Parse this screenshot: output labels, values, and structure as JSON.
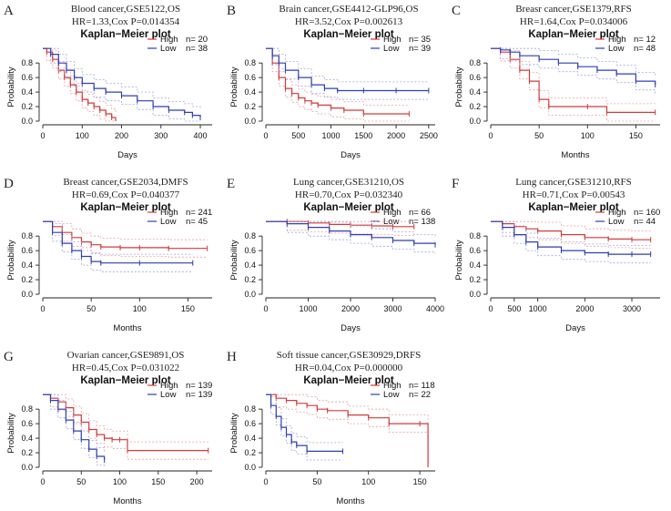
{
  "colors": {
    "high": "#d43a3a",
    "low": "#2f3fb3",
    "ci_high": "#e9a0a0",
    "ci_low": "#a0a6e0",
    "axis": "#222222"
  },
  "chart_data": [
    {
      "letter": "A",
      "title_line1": "Blood cancer,GSE5122,OS",
      "title_line2": "HR=1.33,Cox P=0.014354",
      "plot_title": "Kaplan−Meier plot",
      "type": "line",
      "xlabel": "Days",
      "ylabel": "Probability",
      "xlim": [
        0,
        430
      ],
      "ylim": [
        0,
        1
      ],
      "xticks": [
        0,
        100,
        200,
        300,
        400
      ],
      "yticks": [
        0.0,
        0.2,
        0.4,
        0.6,
        0.8
      ],
      "legend": [
        {
          "label": "High",
          "n": "n= 20"
        },
        {
          "label": "Low",
          "n": "n= 38"
        }
      ],
      "series": [
        {
          "name": "High",
          "x": [
            0,
            10,
            25,
            40,
            55,
            70,
            85,
            100,
            115,
            130,
            145,
            160,
            175,
            185
          ],
          "y": [
            1.0,
            0.95,
            0.85,
            0.7,
            0.6,
            0.5,
            0.4,
            0.3,
            0.25,
            0.2,
            0.15,
            0.1,
            0.05,
            0.0
          ]
        },
        {
          "name": "Low",
          "x": [
            0,
            20,
            40,
            60,
            80,
            100,
            130,
            160,
            200,
            240,
            280,
            320,
            360,
            380,
            400
          ],
          "y": [
            1.0,
            0.92,
            0.8,
            0.7,
            0.6,
            0.52,
            0.45,
            0.4,
            0.35,
            0.28,
            0.2,
            0.15,
            0.12,
            0.08,
            0.05
          ]
        }
      ]
    },
    {
      "letter": "B",
      "title_line1": "Brain cancer,GSE4412-GLP96,OS",
      "title_line2": "HR=3.52,Cox P=0.002613",
      "plot_title": "Kaplan−Meier plot",
      "type": "line",
      "xlabel": "Days",
      "ylabel": "Probability",
      "xlim": [
        0,
        2600
      ],
      "ylim": [
        0,
        1
      ],
      "xticks": [
        0,
        500,
        1000,
        1500,
        2000,
        2500
      ],
      "yticks": [
        0.0,
        0.2,
        0.4,
        0.6,
        0.8
      ],
      "legend": [
        {
          "label": "High",
          "n": "n= 35"
        },
        {
          "label": "Low",
          "n": "n= 39"
        }
      ],
      "series": [
        {
          "name": "High",
          "x": [
            0,
            100,
            200,
            300,
            400,
            500,
            600,
            700,
            800,
            1000,
            1200,
            1500,
            2200
          ],
          "y": [
            1.0,
            0.8,
            0.6,
            0.45,
            0.38,
            0.32,
            0.28,
            0.25,
            0.22,
            0.18,
            0.15,
            0.1,
            0.1
          ]
        },
        {
          "name": "Low",
          "x": [
            0,
            100,
            200,
            300,
            500,
            700,
            900,
            1100,
            1500,
            2000,
            2500
          ],
          "y": [
            1.0,
            0.9,
            0.8,
            0.7,
            0.6,
            0.5,
            0.45,
            0.42,
            0.42,
            0.42,
            0.42
          ]
        }
      ]
    },
    {
      "letter": "C",
      "title_line1": "Breasr cancer,GSE1379,RFS",
      "title_line2": "HR=1.64,Cox P=0.034006",
      "plot_title": "Kaplan−Meier plot",
      "type": "line",
      "xlabel": "Months",
      "ylabel": "Probability",
      "xlim": [
        0,
        175
      ],
      "ylim": [
        0,
        1
      ],
      "xticks": [
        0,
        50,
        100,
        150
      ],
      "yticks": [
        0.0,
        0.2,
        0.4,
        0.6,
        0.8
      ],
      "legend": [
        {
          "label": "High",
          "n": "n= 12"
        },
        {
          "label": "Low",
          "n": "n= 48"
        }
      ],
      "series": [
        {
          "name": "High",
          "x": [
            0,
            10,
            20,
            30,
            40,
            50,
            60,
            100,
            120,
            170
          ],
          "y": [
            1.0,
            0.95,
            0.85,
            0.7,
            0.55,
            0.3,
            0.2,
            0.2,
            0.12,
            0.12
          ]
        },
        {
          "name": "Low",
          "x": [
            0,
            10,
            20,
            30,
            50,
            70,
            90,
            110,
            130,
            150,
            170
          ],
          "y": [
            1.0,
            0.98,
            0.95,
            0.9,
            0.85,
            0.8,
            0.75,
            0.7,
            0.65,
            0.55,
            0.5
          ]
        }
      ]
    },
    {
      "letter": "D",
      "title_line1": "Breast cancer,GSE2034,DMFS",
      "title_line2": "HR=0.69,Cox P=0.040377",
      "plot_title": "Kaplan−Meier plot",
      "type": "line",
      "xlabel": "Months",
      "ylabel": "Probability",
      "xlim": [
        0,
        175
      ],
      "ylim": [
        0,
        1
      ],
      "xticks": [
        0,
        50,
        100,
        150
      ],
      "yticks": [
        0.0,
        0.2,
        0.4,
        0.6,
        0.8
      ],
      "legend": [
        {
          "label": "High",
          "n": "n= 241"
        },
        {
          "label": "Low",
          "n": "n= 45"
        }
      ],
      "series": [
        {
          "name": "High",
          "x": [
            0,
            10,
            20,
            30,
            40,
            50,
            60,
            80,
            100,
            130,
            170
          ],
          "y": [
            1.0,
            0.93,
            0.85,
            0.78,
            0.72,
            0.68,
            0.65,
            0.64,
            0.64,
            0.63,
            0.63
          ]
        },
        {
          "name": "Low",
          "x": [
            0,
            10,
            20,
            30,
            40,
            50,
            60,
            100,
            155
          ],
          "y": [
            1.0,
            0.85,
            0.7,
            0.6,
            0.52,
            0.45,
            0.43,
            0.43,
            0.43
          ]
        }
      ]
    },
    {
      "letter": "E",
      "title_line1": "Lung cancer,GSE31210,OS",
      "title_line2": "HR=0.70,Cox P=0.032340",
      "plot_title": "Kaplan−Meier plot",
      "type": "line",
      "xlabel": "Days",
      "ylabel": "Probability",
      "xlim": [
        0,
        4000
      ],
      "ylim": [
        0,
        1
      ],
      "xticks": [
        0,
        1000,
        2000,
        3000,
        4000
      ],
      "yticks": [
        0.0,
        0.2,
        0.4,
        0.6,
        0.8
      ],
      "legend": [
        {
          "label": "High",
          "n": "n= 66"
        },
        {
          "label": "Low",
          "n": "n= 138"
        }
      ],
      "series": [
        {
          "name": "High",
          "x": [
            0,
            500,
            1000,
            1500,
            2000,
            2500,
            3000,
            3500
          ],
          "y": [
            1.0,
            1.0,
            0.98,
            0.96,
            0.95,
            0.94,
            0.93,
            0.93
          ]
        },
        {
          "name": "Low",
          "x": [
            0,
            500,
            1000,
            1500,
            2000,
            2500,
            3000,
            3500,
            4000
          ],
          "y": [
            1.0,
            0.97,
            0.92,
            0.87,
            0.82,
            0.78,
            0.74,
            0.7,
            0.68
          ]
        }
      ]
    },
    {
      "letter": "F",
      "title_line1": "Lung cancer,GSE31210,RFS",
      "title_line2": "HR=0.71,Cox P=0.00543",
      "plot_title": "Kaplan−Meier plot",
      "type": "line",
      "xlabel": "Days",
      "ylabel": "Probability",
      "xlim": [
        0,
        3600
      ],
      "ylim": [
        0,
        1
      ],
      "xticks": [
        0,
        500,
        1000,
        2000,
        3000
      ],
      "yticks": [
        0.0,
        0.2,
        0.4,
        0.6,
        0.8
      ],
      "legend": [
        {
          "label": "High",
          "n": "n= 160"
        },
        {
          "label": "Low",
          "n": "n= 44"
        }
      ],
      "series": [
        {
          "name": "High",
          "x": [
            0,
            250,
            500,
            750,
            1000,
            1500,
            2000,
            2500,
            3000,
            3400
          ],
          "y": [
            1.0,
            0.97,
            0.93,
            0.9,
            0.87,
            0.82,
            0.78,
            0.76,
            0.75,
            0.75
          ]
        },
        {
          "name": "Low",
          "x": [
            0,
            250,
            500,
            750,
            1000,
            1500,
            2000,
            2500,
            3000,
            3400
          ],
          "y": [
            1.0,
            0.92,
            0.82,
            0.72,
            0.65,
            0.6,
            0.57,
            0.55,
            0.55,
            0.55
          ]
        }
      ]
    },
    {
      "letter": "G",
      "title_line1": "Ovarian cancer,GSE9891,OS",
      "title_line2": "HR=0.45,Cox P=0.031022",
      "plot_title": "Kaplan−Meier plot",
      "type": "line",
      "xlabel": "Months",
      "ylabel": "Probability",
      "xlim": [
        0,
        220
      ],
      "ylim": [
        0,
        1
      ],
      "xticks": [
        0,
        50,
        100,
        150,
        200
      ],
      "yticks": [
        0.0,
        0.2,
        0.4,
        0.6,
        0.8
      ],
      "legend": [
        {
          "label": "High",
          "n": "n= 139"
        },
        {
          "label": "Low",
          "n": "n= 139"
        }
      ],
      "series": [
        {
          "name": "High",
          "x": [
            0,
            10,
            20,
            30,
            40,
            50,
            60,
            70,
            80,
            90,
            100,
            110,
            215
          ],
          "y": [
            1.0,
            0.95,
            0.9,
            0.82,
            0.72,
            0.62,
            0.52,
            0.45,
            0.4,
            0.38,
            0.38,
            0.23,
            0.23
          ]
        },
        {
          "name": "Low",
          "x": [
            0,
            10,
            20,
            30,
            40,
            50,
            60,
            70,
            80
          ],
          "y": [
            1.0,
            0.92,
            0.8,
            0.65,
            0.5,
            0.38,
            0.25,
            0.15,
            0.1
          ]
        }
      ]
    },
    {
      "letter": "H",
      "title_line1": "Soft tissue cancer,GSE30929,DRFS",
      "title_line2": "HR=0.04,Cox P=0.000000",
      "plot_title": "Kaplan−Meier plot",
      "type": "line",
      "xlabel": "Months",
      "ylabel": "Probability",
      "xlim": [
        0,
        165
      ],
      "ylim": [
        0,
        1
      ],
      "xticks": [
        0,
        50,
        100,
        150
      ],
      "yticks": [
        0.0,
        0.2,
        0.4,
        0.6,
        0.8
      ],
      "legend": [
        {
          "label": "High",
          "n": "n= 118"
        },
        {
          "label": "Low",
          "n": "n= 22"
        }
      ],
      "series": [
        {
          "name": "High",
          "x": [
            0,
            10,
            20,
            30,
            40,
            50,
            60,
            80,
            100,
            120,
            150,
            158
          ],
          "y": [
            1.0,
            0.95,
            0.92,
            0.88,
            0.85,
            0.8,
            0.78,
            0.72,
            0.68,
            0.6,
            0.6,
            0.0
          ]
        },
        {
          "name": "Low",
          "x": [
            0,
            5,
            10,
            15,
            20,
            25,
            30,
            40,
            75
          ],
          "y": [
            1.0,
            0.85,
            0.7,
            0.55,
            0.45,
            0.35,
            0.3,
            0.22,
            0.22
          ]
        }
      ]
    }
  ]
}
